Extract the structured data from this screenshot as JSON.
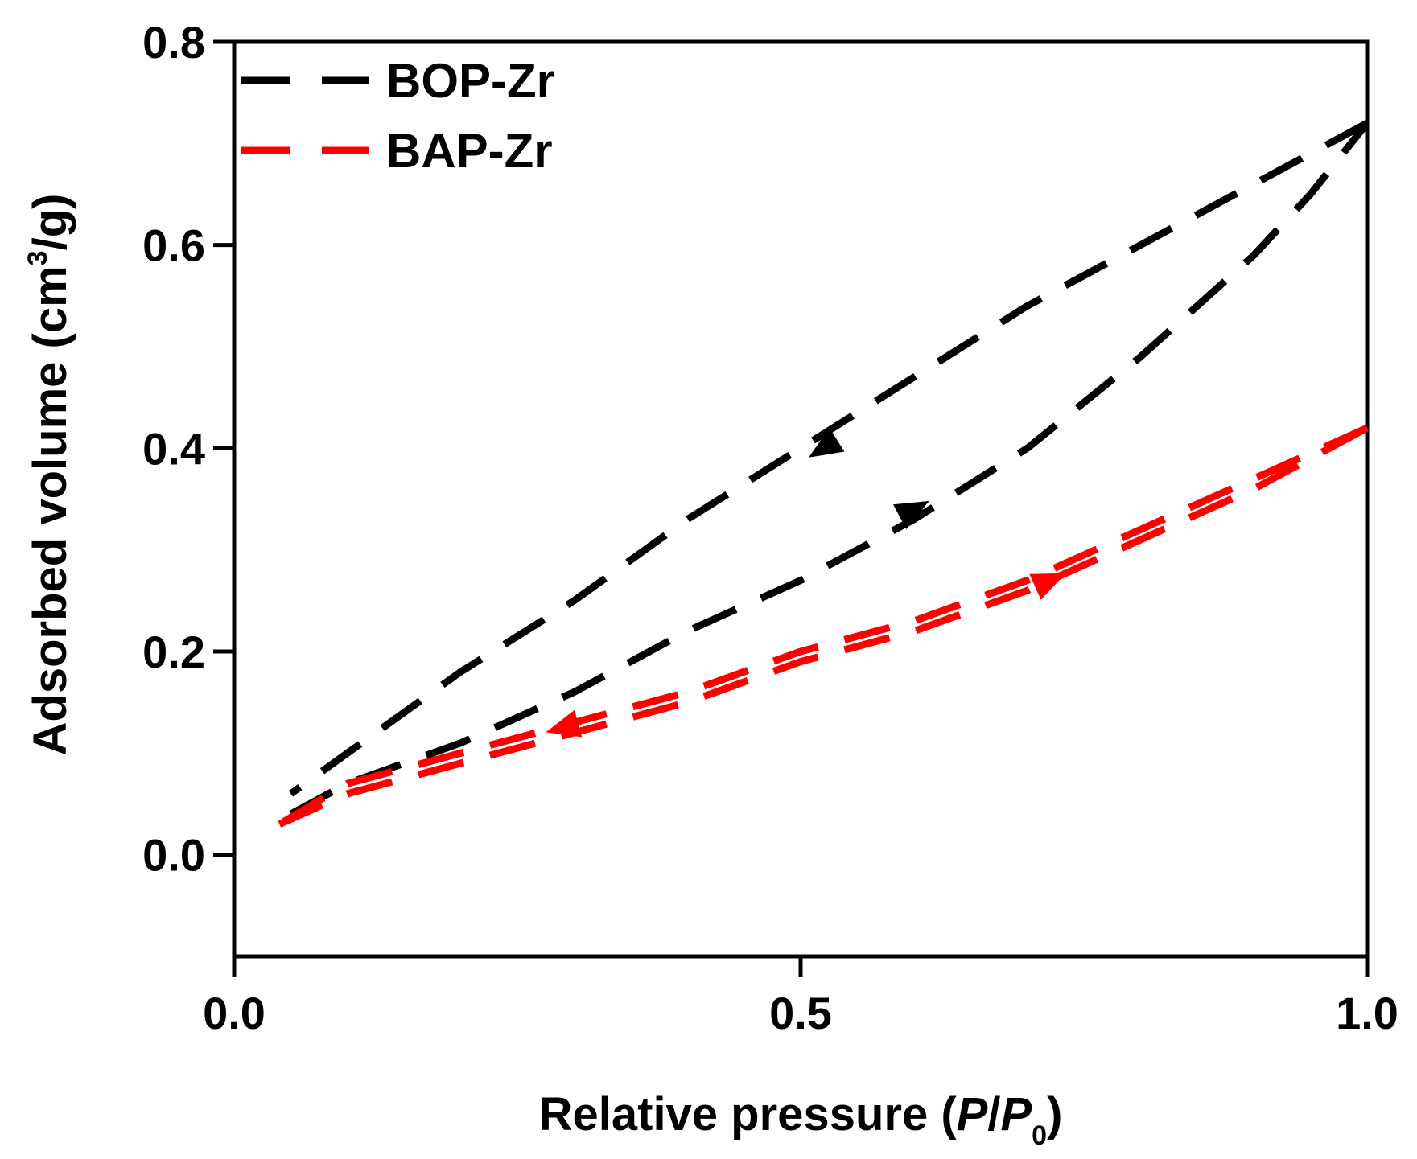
{
  "chart_data": {
    "type": "line",
    "title": "",
    "xlabel": "Relative pressure (P/P0)",
    "xlabel_parts": {
      "prefix": "Relative pressure (",
      "p1": "P",
      "slash": "/",
      "p2": "P",
      "sub": "0",
      "suffix": ")"
    },
    "ylabel": "Adsorbed volume (cm3/g)",
    "ylabel_parts": {
      "prefix": "Adsorbed volume (cm",
      "sup": "3",
      "suffix": "/g)"
    },
    "xlim": [
      0.0,
      1.0
    ],
    "ylim": [
      -0.1,
      0.8
    ],
    "xticks": [
      0.0,
      0.5,
      1.0
    ],
    "xtick_labels": [
      "0.0",
      "0.5",
      "1.0"
    ],
    "yticks": [
      0.0,
      0.2,
      0.4,
      0.6,
      0.8
    ],
    "ytick_labels": [
      "0.0",
      "0.2",
      "0.4",
      "0.6",
      "0.8"
    ],
    "grid": false,
    "legend_position": "top-left",
    "series": [
      {
        "name": "BOP-Zr",
        "color": "#000000",
        "style": "dashed",
        "adsorption": {
          "x": [
            0.05,
            0.1,
            0.2,
            0.3,
            0.4,
            0.5,
            0.6,
            0.7,
            0.8,
            0.9,
            0.95,
            1.0
          ],
          "y": [
            0.04,
            0.07,
            0.11,
            0.16,
            0.22,
            0.27,
            0.33,
            0.4,
            0.49,
            0.59,
            0.65,
            0.72
          ]
        },
        "desorption": {
          "x": [
            1.0,
            0.9,
            0.8,
            0.7,
            0.6,
            0.5,
            0.4,
            0.3,
            0.2,
            0.1,
            0.05
          ],
          "y": [
            0.72,
            0.66,
            0.6,
            0.54,
            0.47,
            0.4,
            0.33,
            0.25,
            0.18,
            0.1,
            0.06
          ]
        },
        "arrows": [
          {
            "direction": "desorption",
            "x": 0.52,
            "y": 0.4
          },
          {
            "direction": "adsorption",
            "x": 0.6,
            "y": 0.34
          }
        ]
      },
      {
        "name": "BAP-Zr",
        "color": "#ff0000",
        "style": "dashed",
        "adsorption": {
          "x": [
            0.04,
            0.1,
            0.2,
            0.3,
            0.4,
            0.5,
            0.6,
            0.7,
            0.8,
            0.9,
            1.0
          ],
          "y": [
            0.03,
            0.06,
            0.09,
            0.12,
            0.15,
            0.19,
            0.22,
            0.26,
            0.31,
            0.36,
            0.42
          ]
        },
        "desorption": {
          "x": [
            1.0,
            0.9,
            0.8,
            0.7,
            0.6,
            0.5,
            0.4,
            0.3,
            0.2,
            0.1,
            0.04
          ],
          "y": [
            0.42,
            0.37,
            0.32,
            0.27,
            0.23,
            0.2,
            0.16,
            0.13,
            0.1,
            0.07,
            0.03
          ]
        },
        "arrows": [
          {
            "direction": "adsorption",
            "x": 0.72,
            "y": 0.27
          },
          {
            "direction": "desorption",
            "x": 0.29,
            "y": 0.125
          }
        ]
      }
    ]
  }
}
